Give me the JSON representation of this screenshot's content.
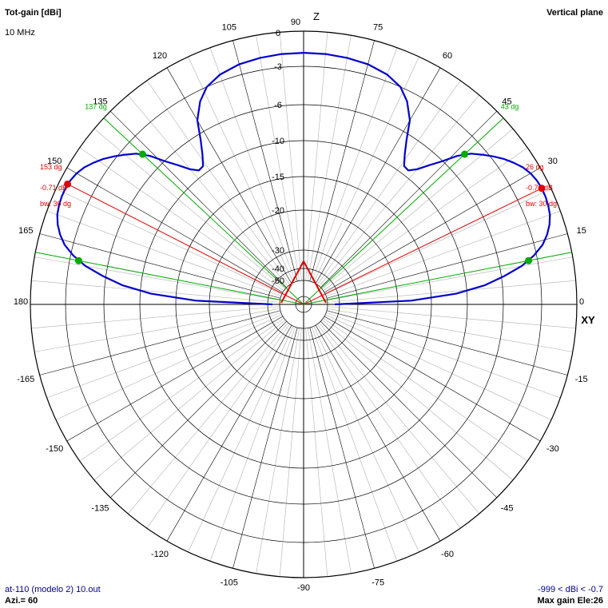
{
  "header": {
    "gain_label": "Tot-gain [dBi]",
    "frequency": "10 MHz",
    "plane": "Vertical plane"
  },
  "footer": {
    "file": "at-110 (modelo 2) 10.out",
    "azimuth": "Azi.= 60",
    "range": "-999 < dBi < -0.7",
    "max_gain": "Max gain Ele:26"
  },
  "chart_data": {
    "type": "polar-line",
    "axis_labels": {
      "top": "Z",
      "right": "XY"
    },
    "angle_ticks": [
      {
        "angle": 90,
        "label": "90"
      },
      {
        "angle": 75,
        "label": "75"
      },
      {
        "angle": 60,
        "label": "60"
      },
      {
        "angle": 45,
        "label": "45"
      },
      {
        "angle": 30,
        "label": "30"
      },
      {
        "angle": 15,
        "label": "15"
      },
      {
        "angle": 0,
        "label": "0"
      },
      {
        "angle": -15,
        "label": "-15"
      },
      {
        "angle": -30,
        "label": "-30"
      },
      {
        "angle": -45,
        "label": "-45"
      },
      {
        "angle": -60,
        "label": "-60"
      },
      {
        "angle": -75,
        "label": "-75"
      },
      {
        "angle": -90,
        "label": "-90"
      },
      {
        "angle": -105,
        "label": "-105"
      },
      {
        "angle": -120,
        "label": "-120"
      },
      {
        "angle": -135,
        "label": "-135"
      },
      {
        "angle": -150,
        "label": "-150"
      },
      {
        "angle": -165,
        "label": "-165"
      },
      {
        "angle": 180,
        "label": "180"
      },
      {
        "angle": 165,
        "label": "165"
      },
      {
        "angle": 150,
        "label": "150"
      },
      {
        "angle": 135,
        "label": "135"
      },
      {
        "angle": 120,
        "label": "120"
      },
      {
        "angle": 105,
        "label": "105"
      }
    ],
    "gain_ticks": [
      {
        "db": 0,
        "label": "0"
      },
      {
        "db": -3,
        "label": "-3"
      },
      {
        "db": -6,
        "label": "-6"
      },
      {
        "db": -10,
        "label": "-10"
      },
      {
        "db": -15,
        "label": "-15"
      },
      {
        "db": -20,
        "label": "-20"
      },
      {
        "db": -30,
        "label": "-30"
      },
      {
        "db": -40,
        "label": "-40"
      },
      {
        "db": -50,
        "label": "-50"
      }
    ],
    "pattern": [
      {
        "angle": 0,
        "db": -44
      },
      {
        "angle": 2,
        "db": -18
      },
      {
        "angle": 4,
        "db": -11.5
      },
      {
        "angle": 6,
        "db": -8
      },
      {
        "angle": 8,
        "db": -5.8
      },
      {
        "angle": 10,
        "db": -4.3
      },
      {
        "angle": 12,
        "db": -3.2
      },
      {
        "angle": 14,
        "db": -2.3
      },
      {
        "angle": 16,
        "db": -1.7
      },
      {
        "angle": 18,
        "db": -1.25
      },
      {
        "angle": 20,
        "db": -0.95
      },
      {
        "angle": 22,
        "db": -0.8
      },
      {
        "angle": 24,
        "db": -0.72
      },
      {
        "angle": 26,
        "db": -0.71
      },
      {
        "angle": 28,
        "db": -0.78
      },
      {
        "angle": 30,
        "db": -0.95
      },
      {
        "angle": 32,
        "db": -1.25
      },
      {
        "angle": 34,
        "db": -1.7
      },
      {
        "angle": 36,
        "db": -2.2
      },
      {
        "angle": 38,
        "db": -2.8
      },
      {
        "angle": 40,
        "db": -3.4
      },
      {
        "angle": 42,
        "db": -4.0
      },
      {
        "angle": 44,
        "db": -4.9
      },
      {
        "angle": 46,
        "db": -6.1
      },
      {
        "angle": 48,
        "db": -7.4
      },
      {
        "angle": 50,
        "db": -8.6
      },
      {
        "angle": 52,
        "db": -9.3
      },
      {
        "angle": 54,
        "db": -9.2
      },
      {
        "angle": 56,
        "db": -8.1
      },
      {
        "angle": 58,
        "db": -6.6
      },
      {
        "angle": 60,
        "db": -5.0
      },
      {
        "angle": 63,
        "db": -3.8
      },
      {
        "angle": 66,
        "db": -3.0
      },
      {
        "angle": 70,
        "db": -2.45
      },
      {
        "angle": 75,
        "db": -2.1
      },
      {
        "angle": 80,
        "db": -1.95
      },
      {
        "angle": 85,
        "db": -1.87
      },
      {
        "angle": 90,
        "db": -1.85
      },
      {
        "angle": 95,
        "db": -1.87
      },
      {
        "angle": 100,
        "db": -1.95
      },
      {
        "angle": 105,
        "db": -2.1
      },
      {
        "angle": 110,
        "db": -2.45
      },
      {
        "angle": 114,
        "db": -3.0
      },
      {
        "angle": 117,
        "db": -3.8
      },
      {
        "angle": 120,
        "db": -5.0
      },
      {
        "angle": 122,
        "db": -6.6
      },
      {
        "angle": 124,
        "db": -8.1
      },
      {
        "angle": 126,
        "db": -9.2
      },
      {
        "angle": 128,
        "db": -9.3
      },
      {
        "angle": 130,
        "db": -8.6
      },
      {
        "angle": 132,
        "db": -7.4
      },
      {
        "angle": 134,
        "db": -6.1
      },
      {
        "angle": 136,
        "db": -4.9
      },
      {
        "angle": 138,
        "db": -4.0
      },
      {
        "angle": 140,
        "db": -3.4
      },
      {
        "angle": 142,
        "db": -2.8
      },
      {
        "angle": 144,
        "db": -2.2
      },
      {
        "angle": 146,
        "db": -1.7
      },
      {
        "angle": 148,
        "db": -1.25
      },
      {
        "angle": 150,
        "db": -0.95
      },
      {
        "angle": 152,
        "db": -0.78
      },
      {
        "angle": 154,
        "db": -0.71
      },
      {
        "angle": 156,
        "db": -0.72
      },
      {
        "angle": 158,
        "db": -0.8
      },
      {
        "angle": 160,
        "db": -0.95
      },
      {
        "angle": 162,
        "db": -1.25
      },
      {
        "angle": 164,
        "db": -1.7
      },
      {
        "angle": 166,
        "db": -2.3
      },
      {
        "angle": 168,
        "db": -3.2
      },
      {
        "angle": 170,
        "db": -4.3
      },
      {
        "angle": 172,
        "db": -5.8
      },
      {
        "angle": 174,
        "db": -8
      },
      {
        "angle": 176,
        "db": -11.5
      },
      {
        "angle": 178,
        "db": -18
      },
      {
        "angle": 180,
        "db": -44
      }
    ],
    "max_gain_markers": [
      {
        "angle": 26,
        "angle_label": "26 dg",
        "db_label": "-0.71 dB",
        "bw_label": "bw: 30 dg"
      },
      {
        "angle": 153,
        "angle_label": "153 dg",
        "db_label": "-0.71 dB",
        "bw_label": "bw: 30 dg"
      }
    ],
    "beamwidth_markers": [
      {
        "angle": 11,
        "db": -3.7,
        "angle_label": ""
      },
      {
        "angle": 43,
        "db": -4.4,
        "angle_label": "43 dg"
      },
      {
        "angle": 137,
        "db": -4.4,
        "angle_label": "137 dg"
      },
      {
        "angle": 169,
        "db": -3.7,
        "angle_label": ""
      }
    ],
    "colors": {
      "pattern": "#0000cd",
      "grid": "#000000",
      "grid_light": "#b0b0b0",
      "max_gain": "#e00000",
      "beamwidth": "#00aa00"
    }
  }
}
